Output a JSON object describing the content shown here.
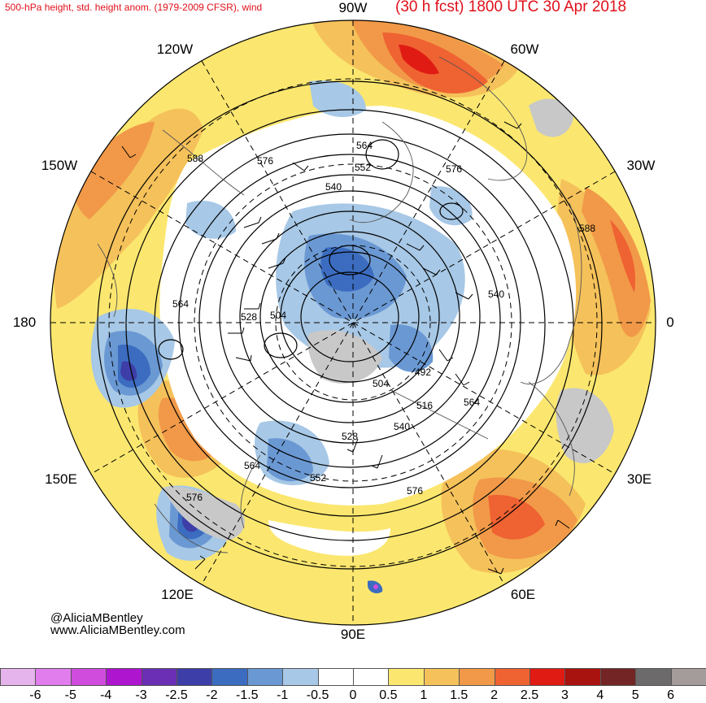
{
  "header": {
    "left": "500-hPa height, std. height anom. (1979-2009 CFSR), wind",
    "right": "(30 h fcst) 1800 UTC 30 Apr 2018"
  },
  "longitude_labels": {
    "w90": "90W",
    "w60": "60W",
    "w30": "30W",
    "zero": "0",
    "e30": "30E",
    "e60": "60E",
    "e90": "90E",
    "e120": "120E",
    "e150": "150E",
    "d180": "180",
    "w150": "150W",
    "w120": "120W"
  },
  "contour_labels": [
    {
      "text": "564",
      "id": "c564-a"
    },
    {
      "text": "552",
      "id": "c552-a"
    },
    {
      "text": "540",
      "id": "c540-a"
    },
    {
      "text": "576",
      "id": "c576-a"
    },
    {
      "text": "588",
      "id": "c588-a"
    },
    {
      "text": "576",
      "id": "c576-b"
    },
    {
      "text": "588",
      "id": "c588-b"
    },
    {
      "text": "540",
      "id": "c540-b"
    },
    {
      "text": "564",
      "id": "c564-b"
    },
    {
      "text": "528",
      "id": "c528-a"
    },
    {
      "text": "504",
      "id": "c504-a"
    },
    {
      "text": "492",
      "id": "c492"
    },
    {
      "text": "504",
      "id": "c504-b"
    },
    {
      "text": "516",
      "id": "c516"
    },
    {
      "text": "564",
      "id": "c564-c"
    },
    {
      "text": "540",
      "id": "c540-c"
    },
    {
      "text": "528",
      "id": "c528-b"
    },
    {
      "text": "564",
      "id": "c564-d"
    },
    {
      "text": "552",
      "id": "c552-b"
    },
    {
      "text": "576",
      "id": "c576-c"
    },
    {
      "text": "576",
      "id": "c576-d"
    }
  ],
  "credits": {
    "handle": "@AliciaMBentley",
    "site": "www.AliciaMBentley.com"
  },
  "colorbar": {
    "ticks": [
      "-6",
      "-5",
      "-4",
      "-3",
      "-2.5",
      "-2",
      "-1.5",
      "-1",
      "-0.5",
      "0",
      "0.5",
      "1",
      "1.5",
      "2",
      "2.5",
      "3",
      "4",
      "5",
      "6"
    ],
    "colors": [
      "#e6b4ec",
      "#e17ded",
      "#cf4cdd",
      "#ad15cf",
      "#6a2fb4",
      "#3e3ea8",
      "#3b6cc0",
      "#6a98d3",
      "#a7c8e6",
      "#ffffff",
      "#ffffff",
      "#fbe76f",
      "#f5c15a",
      "#f19948",
      "#ef6232",
      "#e01b14",
      "#a8120f",
      "#722524",
      "#6c6a6a",
      "#a39c9a"
    ]
  },
  "colors": {
    "ocean_bg": "#ffffff",
    "title_red": "#e0101a"
  }
}
